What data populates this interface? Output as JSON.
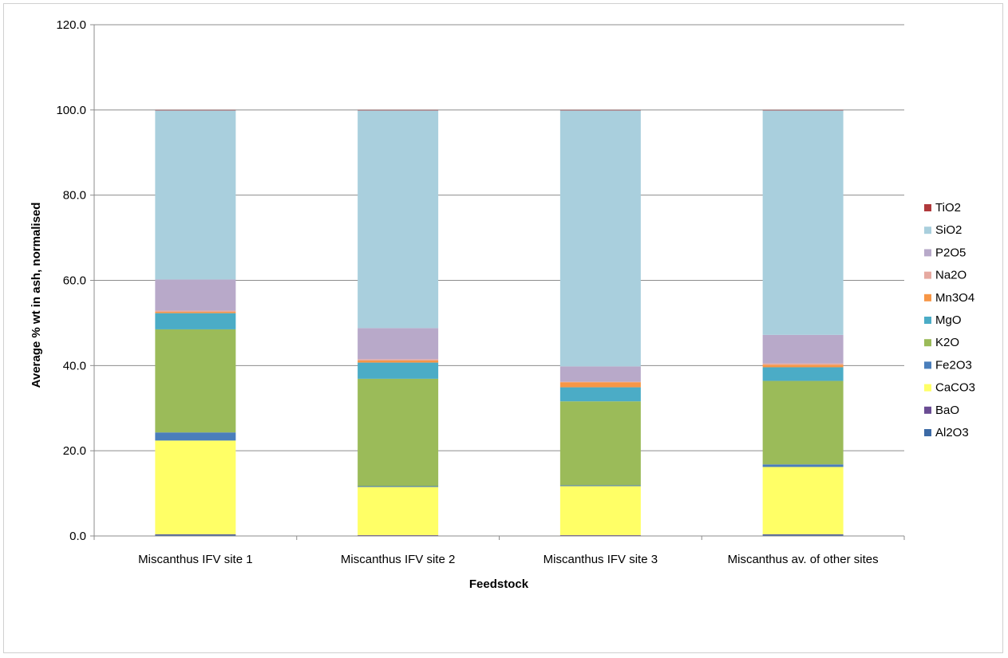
{
  "chart_data": {
    "type": "bar",
    "stacked": true,
    "title": "",
    "xlabel": "Feedstock",
    "ylabel": "Average % wt in ash, normalised",
    "ylim": [
      0,
      120
    ],
    "yticks": [
      "0.0",
      "20.0",
      "40.0",
      "60.0",
      "80.0",
      "100.0",
      "120.0"
    ],
    "grid": true,
    "legend_position": "right",
    "categories": [
      "Miscanthus IFV site 1",
      "Miscanthus IFV site 2",
      "Miscanthus IFV site 3",
      "Miscanthus av. of other sites"
    ],
    "series": [
      {
        "name": "Al2O3",
        "color": "#3c6aa5",
        "values": [
          0.3,
          0.1,
          0.1,
          0.3
        ]
      },
      {
        "name": "BaO",
        "color": "#6a4c93",
        "values": [
          0.1,
          0.1,
          0.1,
          0.1
        ]
      },
      {
        "name": "CaCO3",
        "color": "#ffff66",
        "values": [
          22.0,
          11.3,
          11.5,
          15.8
        ]
      },
      {
        "name": "Fe2O3",
        "color": "#4a7ebb",
        "values": [
          1.9,
          0.2,
          0.2,
          0.6
        ]
      },
      {
        "name": "K2O",
        "color": "#9bbb59",
        "values": [
          24.2,
          25.2,
          19.7,
          19.6
        ]
      },
      {
        "name": "MgO",
        "color": "#4bacc6",
        "values": [
          3.8,
          3.8,
          3.3,
          3.2
        ]
      },
      {
        "name": "Mn3O4",
        "color": "#f79646",
        "values": [
          0.3,
          0.5,
          1.2,
          0.6
        ]
      },
      {
        "name": "Na2O",
        "color": "#e6a9a0",
        "values": [
          0.3,
          0.3,
          0.1,
          0.3
        ]
      },
      {
        "name": "P2O5",
        "color": "#b8a9c9",
        "values": [
          7.3,
          7.3,
          3.6,
          6.7
        ]
      },
      {
        "name": "SiO2",
        "color": "#a9cfdd",
        "values": [
          39.7,
          51.1,
          60.1,
          52.7
        ]
      },
      {
        "name": "TiO2",
        "color": "#b0393b",
        "values": [
          0.1,
          0.1,
          0.1,
          0.1
        ]
      }
    ]
  }
}
